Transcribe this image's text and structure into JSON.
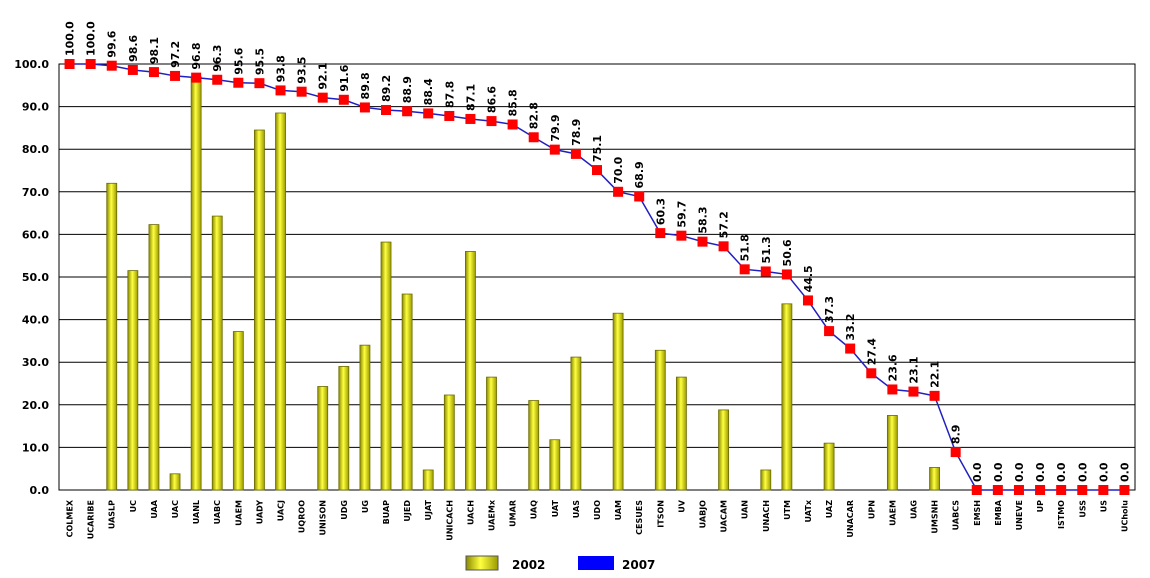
{
  "chart_data": {
    "type": "bar+line",
    "categories": [
      "COLMEX",
      "UCARIBE",
      "UASLP",
      "UC",
      "UAA",
      "UAC",
      "UANL",
      "UABC",
      "UAEM",
      "UADY",
      "UACJ",
      "UQROO",
      "UNISON",
      "UDG",
      "UG",
      "BUAP",
      "UJED",
      "UJAT",
      "UNICACH",
      "UACH",
      "UAEMx",
      "UMAR",
      "UAQ",
      "UAT",
      "UAS",
      "UDO",
      "UAM",
      "CESUES",
      "ITSON",
      "UV",
      "UABJO",
      "UACAM",
      "UAN",
      "UNACH",
      "UTM",
      "UATx",
      "UAZ",
      "UNACAR",
      "UPN",
      "UAEM",
      "UAG",
      "UMSNH",
      "UABCS",
      "EMSH",
      "EMBA",
      "UNEVE",
      "UP",
      "ISTMO",
      "USS",
      "US",
      "UCholu"
    ],
    "series": [
      {
        "name": "2002",
        "type": "bar",
        "color": "#e6e600",
        "values": [
          0,
          0,
          72,
          51.5,
          62.3,
          3.8,
          97,
          64.3,
          37.2,
          84.5,
          88.5,
          0,
          24.3,
          29,
          34,
          58.2,
          46,
          4.7,
          22.3,
          56,
          26.5,
          0,
          21,
          11.8,
          31.2,
          0,
          41.5,
          0,
          32.8,
          26.5,
          0,
          18.8,
          0,
          4.7,
          43.7,
          0,
          11,
          0,
          0,
          17.5,
          0,
          5.3,
          0,
          0,
          0,
          0,
          0,
          0,
          0,
          0,
          0
        ]
      },
      {
        "name": "2007",
        "type": "line",
        "color": "#2020c0",
        "marker_color": "#ff0000",
        "values": [
          100.0,
          100.0,
          99.6,
          98.6,
          98.1,
          97.2,
          96.8,
          96.3,
          95.6,
          95.5,
          93.8,
          93.5,
          92.1,
          91.6,
          89.8,
          89.2,
          88.9,
          88.4,
          87.8,
          87.1,
          86.6,
          85.8,
          82.8,
          79.9,
          78.9,
          75.1,
          70.0,
          68.9,
          60.3,
          59.7,
          58.3,
          57.2,
          51.8,
          51.3,
          50.6,
          44.5,
          37.3,
          33.2,
          27.4,
          23.6,
          23.1,
          22.1,
          8.9,
          0.0,
          0.0,
          0.0,
          0.0,
          0.0,
          0.0,
          0.0,
          0.0
        ]
      }
    ],
    "yticks": [
      "0.0",
      "10.0",
      "20.0",
      "30.0",
      "40.0",
      "50.0",
      "60.0",
      "70.0",
      "80.0",
      "90.0",
      "100.0"
    ],
    "ylim": [
      0,
      100
    ],
    "grid": true,
    "legend": "bottom",
    "title": "",
    "xlabel": "",
    "ylabel": ""
  }
}
